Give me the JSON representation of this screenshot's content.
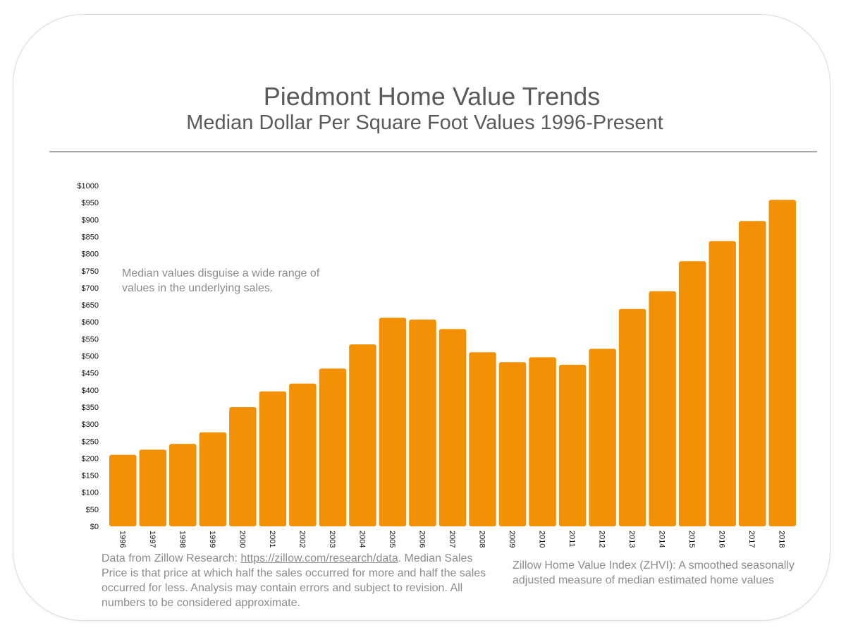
{
  "title": "Piedmont Home Value Trends",
  "subtitle": "Median Dollar Per Square Foot Values 1996-Present",
  "notes": {
    "median_disguise": "Median values disguise a wide range of values in the underlying sales.",
    "source_prefix": "Data from Zillow Research: ",
    "source_link": "https://zillow.com/research/data",
    "source_suffix": ". Median Sales Price is that price at which half the sales occurred for more and half the sales occurred for less.  Analysis may contain errors and subject to revision.  All numbers to be considered approximate.",
    "zhvi": "Zillow Home Value Index (ZHVI): A smoothed seasonally adjusted measure of median estimated home values"
  },
  "colors": {
    "bar": "#f29105",
    "text": "#5a5a5a",
    "note": "#8c8c8c",
    "rule": "#a8a8a8"
  },
  "chart_data": {
    "type": "bar",
    "title": "Piedmont Home Value Trends",
    "subtitle": "Median Dollar Per Square Foot Values 1996-Present",
    "xlabel": "",
    "ylabel": "",
    "ylim": [
      0,
      1000
    ],
    "grid": false,
    "categories": [
      "1996",
      "1997",
      "1998",
      "1999",
      "2000",
      "2001",
      "2002",
      "2003",
      "2004",
      "2005",
      "2006",
      "2007",
      "2008",
      "2009",
      "2010",
      "2011",
      "2012",
      "2013",
      "2014",
      "2015",
      "2016",
      "2017",
      "2018"
    ],
    "values": [
      210,
      225,
      242,
      276,
      350,
      396,
      419,
      463,
      534,
      612,
      607,
      579,
      511,
      482,
      496,
      474,
      521,
      638,
      690,
      778,
      837,
      896,
      958
    ],
    "y_ticks": [
      "$0",
      "$50",
      "$100",
      "$150",
      "$200",
      "$250",
      "$300",
      "$350",
      "$400",
      "$450",
      "$500",
      "$550",
      "$600",
      "$650",
      "$700",
      "$750",
      "$800",
      "$850",
      "$900",
      "$950",
      "$1000"
    ],
    "y_tick_values": [
      0,
      50,
      100,
      150,
      200,
      250,
      300,
      350,
      400,
      450,
      500,
      550,
      600,
      650,
      700,
      750,
      800,
      850,
      900,
      950,
      1000
    ]
  }
}
